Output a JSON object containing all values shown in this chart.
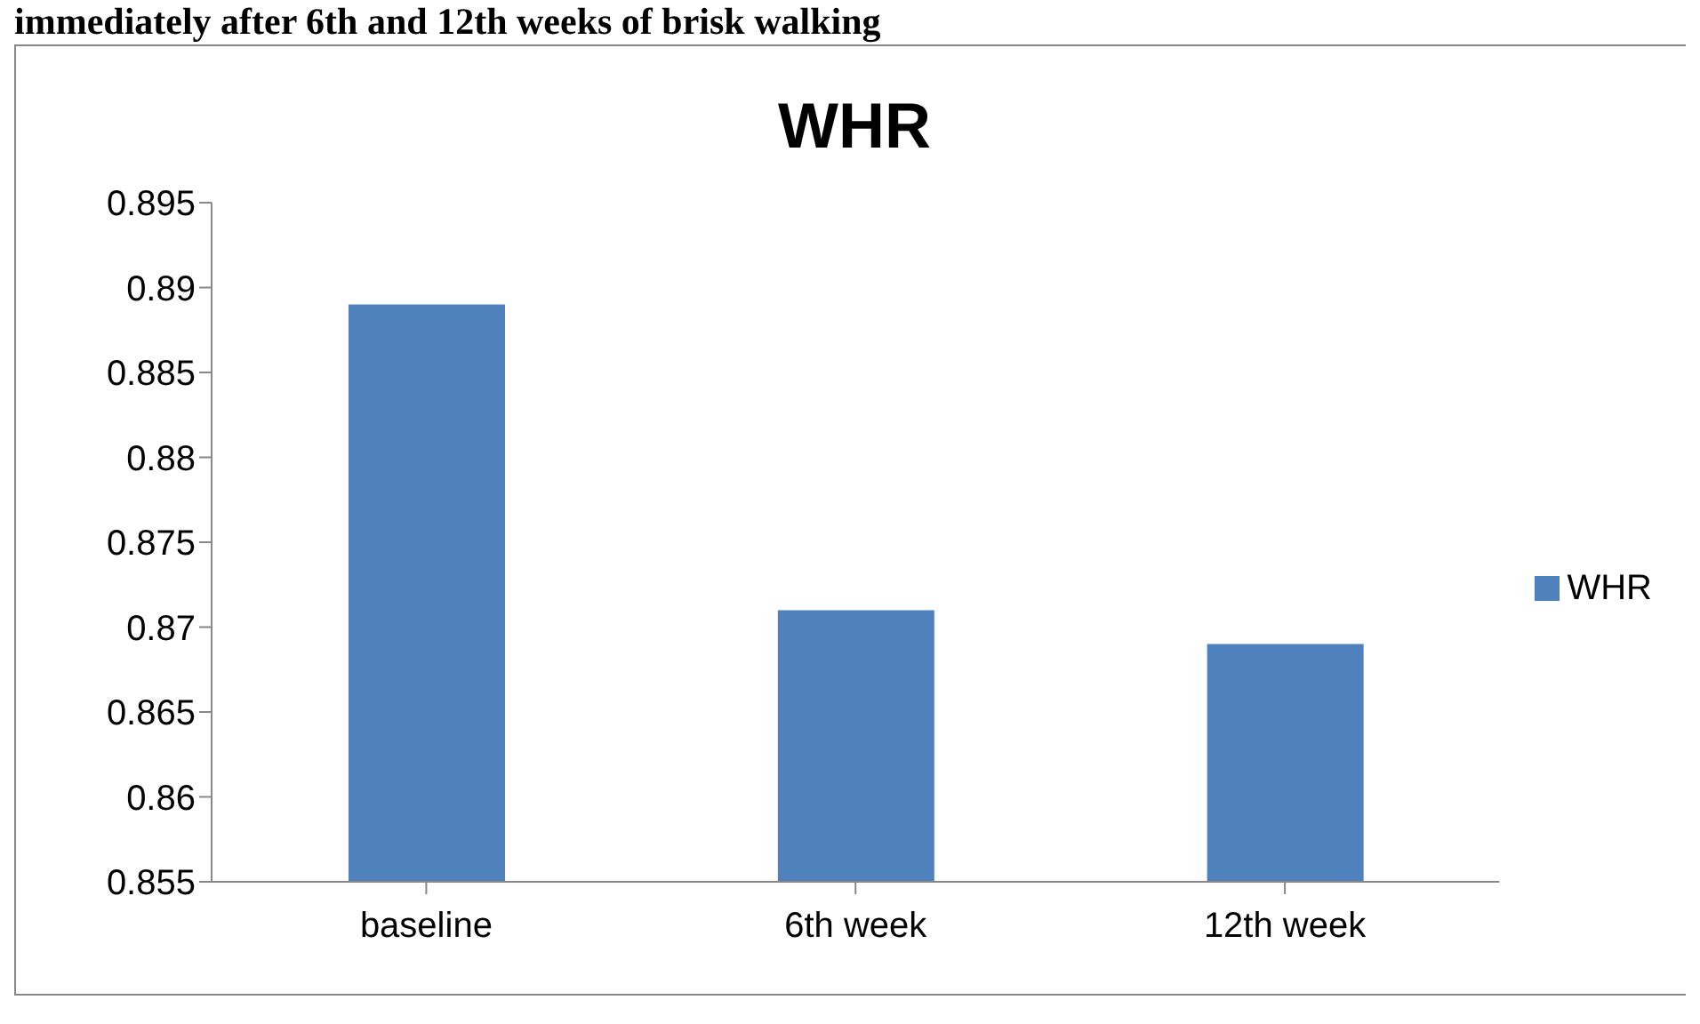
{
  "chart_data": {
    "type": "bar",
    "title": "WHR",
    "annotations": [
      "immediately after 6th and 12th weeks of brisk walking"
    ],
    "categories": [
      "baseline",
      "6th week",
      "12th week"
    ],
    "series": [
      {
        "name": "WHR",
        "color": "#4f81bd",
        "values": [
          0.889,
          0.871,
          0.869
        ]
      }
    ],
    "ylim": [
      0.855,
      0.895
    ],
    "yticks": [
      0.855,
      0.86,
      0.865,
      0.87,
      0.875,
      0.88,
      0.885,
      0.89,
      0.895
    ],
    "grid": false,
    "legend": "right"
  }
}
